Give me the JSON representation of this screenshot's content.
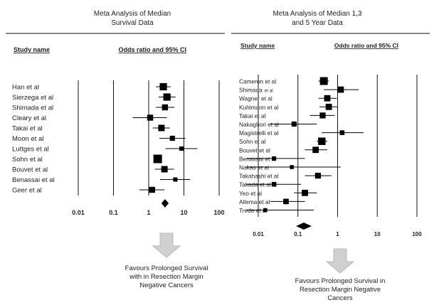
{
  "chart_data": [
    {
      "type": "forest",
      "title": "Meta Analysis of Median\nSurvival Data",
      "col_study": "Study name",
      "col_effect": "Odds ratio and 95% CI",
      "scale": "log",
      "xlim": [
        0.01,
        100
      ],
      "ticks": [
        "0.01",
        "0.1",
        "1",
        "10",
        "100"
      ],
      "tick_values": [
        0.01,
        0.1,
        1,
        10,
        100
      ],
      "studies": [
        {
          "name": "Han et al",
          "or": 2.6,
          "lo": 1.6,
          "hi": 4.2,
          "weight": 0.85
        },
        {
          "name": "Sierzega et al",
          "or": 3.3,
          "lo": 1.9,
          "hi": 5.8,
          "weight": 0.85
        },
        {
          "name": "Shimada et al",
          "or": 2.9,
          "lo": 1.6,
          "hi": 5.4,
          "weight": 0.7
        },
        {
          "name": "Cleary et al",
          "or": 1.1,
          "lo": 0.35,
          "hi": 3.3,
          "weight": 0.7
        },
        {
          "name": "Takai et al",
          "or": 2.3,
          "lo": 1.3,
          "hi": 4.0,
          "weight": 0.75
        },
        {
          "name": "Moon et al",
          "or": 4.7,
          "lo": 2.0,
          "hi": 11.0,
          "weight": 0.6
        },
        {
          "name": "Luttges et al",
          "or": 8.5,
          "lo": 3.0,
          "hi": 24.0,
          "weight": 0.5
        },
        {
          "name": "Sohn et al",
          "or": 1.8,
          "lo": 1.45,
          "hi": 2.2,
          "weight": 1.0
        },
        {
          "name": "Bouvet et al",
          "or": 2.8,
          "lo": 1.5,
          "hi": 5.2,
          "weight": 0.75
        },
        {
          "name": "Benassai et al",
          "or": 5.7,
          "lo": 2.1,
          "hi": 15.0,
          "weight": 0.5
        },
        {
          "name": "Geer et al",
          "or": 1.25,
          "lo": 0.55,
          "hi": 2.8,
          "weight": 0.7
        }
      ],
      "pooled": {
        "or": 2.9,
        "lo": 2.3,
        "hi": 3.7
      },
      "footer": "Favours Prolonged Survival\nwith in Resection Margin\nNegative Cancers"
    },
    {
      "type": "forest",
      "title": "Meta Analysis of Median 1,3\nand 5 Year Data",
      "col_study": "Study name",
      "col_effect": "Odds ratio and 95% CI",
      "scale": "log",
      "xlim": [
        0.01,
        100
      ],
      "ticks": [
        "0.01",
        "0.1",
        "1",
        "10",
        "100"
      ],
      "tick_values": [
        0.01,
        0.1,
        1,
        10,
        100
      ],
      "studies": [
        {
          "name": "Cameron et al",
          "or": 0.45,
          "lo": 0.33,
          "hi": 0.6,
          "weight": 1.0
        },
        {
          "name": "Shimada",
          "name_suffix": "et al",
          "or": 1.2,
          "lo": 0.45,
          "hi": 3.4,
          "weight": 0.8
        },
        {
          "name": "Wagner et al",
          "or": 0.55,
          "lo": 0.33,
          "hi": 0.95,
          "weight": 0.8
        },
        {
          "name": "Kuhlmann et al",
          "or": 0.6,
          "lo": 0.35,
          "hi": 1.0,
          "weight": 0.8
        },
        {
          "name": "Takai et al",
          "or": 0.42,
          "lo": 0.2,
          "hi": 0.85,
          "weight": 0.75
        },
        {
          "name": "Nakaghori et al",
          "or": 0.08,
          "lo": 0.02,
          "hi": 0.3,
          "weight": 0.65
        },
        {
          "name": "Magistrelli et al",
          "or": 1.3,
          "lo": 0.4,
          "hi": 4.5,
          "weight": 0.6
        },
        {
          "name": "Sohn et al",
          "or": 0.4,
          "lo": 0.3,
          "hi": 0.55,
          "weight": 0.95
        },
        {
          "name": "Bouvet et al",
          "or": 0.28,
          "lo": 0.15,
          "hi": 0.55,
          "weight": 0.8
        },
        {
          "name": "Benassai et al",
          "or": 0.025,
          "lo": 0.005,
          "hi": 0.15,
          "weight": 0.55
        },
        {
          "name": "Nakao et al",
          "or": 0.07,
          "lo": 0.005,
          "hi": 1.2,
          "weight": 0.5
        },
        {
          "name": "Takahashi et al",
          "or": 0.32,
          "lo": 0.15,
          "hi": 0.7,
          "weight": 0.75
        },
        {
          "name": "Takada et al",
          "or": 0.025,
          "lo": 0.005,
          "hi": 0.12,
          "weight": 0.6
        },
        {
          "name": "Yeo et al",
          "or": 0.15,
          "lo": 0.08,
          "hi": 0.3,
          "weight": 0.8
        },
        {
          "name": "Allema et al",
          "or": 0.05,
          "lo": 0.02,
          "hi": 0.15,
          "weight": 0.7
        },
        {
          "name": "Trede et al",
          "or": 0.015,
          "lo": 0.005,
          "hi": 0.25,
          "weight": 0.5
        }
      ],
      "pooled": {
        "or": 0.14,
        "lo": 0.09,
        "hi": 0.22
      },
      "footer": "Favours Prolonged Survival in\nResection Margin Negative\nCancers"
    }
  ],
  "colors": {
    "text": "#222222",
    "marker": "#000000",
    "rule": "#111111",
    "arrow": "#d0d0d0",
    "arrow_edge": "#b8b8b8"
  }
}
